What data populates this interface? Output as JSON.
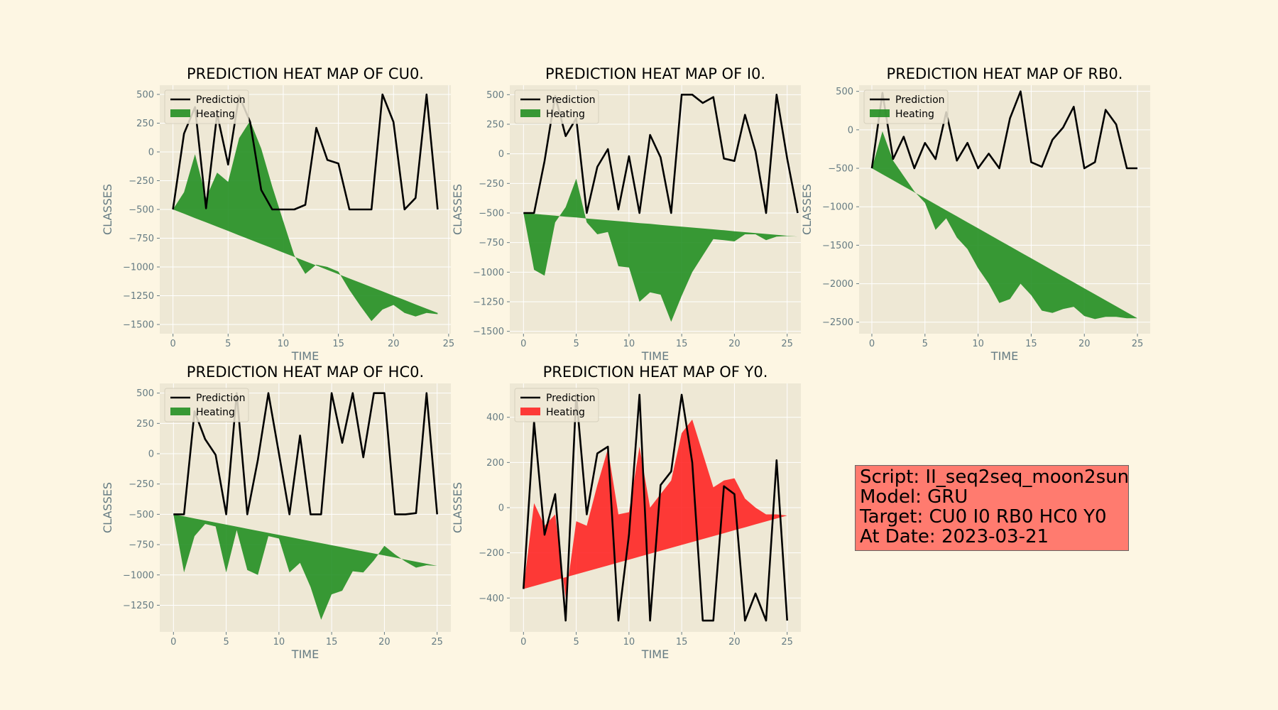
{
  "chart_data": [
    {
      "type": "line",
      "title": "PREDICTION HEAT MAP OF CU0.",
      "xlabel": "TIME",
      "ylabel": "CLASSES",
      "xlim": [
        -1.2,
        25.2
      ],
      "ylim": [
        -1580,
        580
      ],
      "xticks": [
        0,
        5,
        10,
        15,
        20,
        25
      ],
      "xtick_labels": [
        "0",
        "5",
        "10",
        "15",
        "20",
        "25"
      ],
      "yticks": [
        500,
        250,
        0,
        -250,
        -500,
        -750,
        -1000,
        -1250,
        -1500
      ],
      "ytick_labels": [
        "500",
        "250",
        "0",
        "−250",
        "−500",
        "−750",
        "−1000",
        "−1250",
        "−1500"
      ],
      "legend": [
        "Prediction",
        "Heating"
      ],
      "legend_position": "top-left",
      "grid": true,
      "fill_color": "#1e8c1e",
      "prediction": [
        -500,
        160,
        390,
        -490,
        330,
        -110,
        490,
        260,
        -330,
        -500,
        -500,
        -500,
        -460,
        210,
        -70,
        -100,
        -500,
        -500,
        -500,
        500,
        260,
        -500,
        -400,
        500,
        -500
      ],
      "heating_baseline": [
        -500,
        -537,
        -575,
        -612,
        -650,
        -687,
        -725,
        -762,
        -800,
        -837,
        -875,
        -912,
        -950,
        -987,
        -1025,
        -1062,
        -1100,
        -1137,
        -1175,
        -1212,
        -1250,
        -1287,
        -1325,
        -1362,
        -1400
      ],
      "heating_values": [
        -500,
        -350,
        -20,
        -400,
        -180,
        -260,
        120,
        270,
        30,
        -300,
        -600,
        -900,
        -1060,
        -980,
        -1000,
        -1040,
        -1200,
        -1340,
        -1470,
        -1370,
        -1330,
        -1400,
        -1430,
        -1400,
        -1410
      ]
    },
    {
      "type": "line",
      "title": "PREDICTION HEAT MAP OF I0.",
      "xlabel": "TIME",
      "ylabel": "CLASSES",
      "xlim": [
        -1.3,
        26.3
      ],
      "ylim": [
        -1520,
        580
      ],
      "xticks": [
        0,
        5,
        10,
        15,
        20,
        25
      ],
      "xtick_labels": [
        "0",
        "5",
        "10",
        "15",
        "20",
        "25"
      ],
      "yticks": [
        500,
        250,
        0,
        -250,
        -500,
        -750,
        -1000,
        -1250,
        -1500
      ],
      "ytick_labels": [
        "500",
        "250",
        "0",
        "−250",
        "−500",
        "−750",
        "−1000",
        "−1250",
        "−1500"
      ],
      "legend": [
        "Prediction",
        "Heating"
      ],
      "legend_position": "top-left",
      "grid": true,
      "fill_color": "#1e8c1e",
      "prediction": [
        -500,
        -500,
        -60,
        490,
        150,
        300,
        -500,
        -110,
        40,
        -470,
        -20,
        -500,
        160,
        -30,
        -500,
        500,
        500,
        430,
        480,
        -40,
        -60,
        330,
        20,
        -500,
        500,
        -40,
        -500
      ],
      "heating_baseline": [
        -500,
        -508,
        -515,
        -523,
        -531,
        -538,
        -546,
        -554,
        -562,
        -569,
        -577,
        -585,
        -592,
        -600,
        -608,
        -615,
        -623,
        -631,
        -638,
        -646,
        -654,
        -662,
        -669,
        -677,
        -685,
        -692,
        -700
      ],
      "heating_values": [
        -500,
        -980,
        -1030,
        -580,
        -450,
        -210,
        -580,
        -680,
        -660,
        -950,
        -960,
        -1250,
        -1170,
        -1190,
        -1420,
        -1200,
        -1000,
        -860,
        -720,
        -730,
        -740,
        -680,
        -680,
        -730,
        -700,
        -695,
        -700
      ]
    },
    {
      "type": "line",
      "title": "PREDICTION HEAT MAP OF RB0.",
      "xlabel": "TIME",
      "ylabel": "CLASSES",
      "xlim": [
        -1.2,
        26.2
      ],
      "ylim": [
        -2650,
        580
      ],
      "xticks": [
        0,
        5,
        10,
        15,
        20,
        25
      ],
      "xtick_labels": [
        "0",
        "5",
        "10",
        "15",
        "20",
        "25"
      ],
      "yticks": [
        500,
        0,
        -500,
        -1000,
        -1500,
        -2000,
        -2500
      ],
      "ytick_labels": [
        "500",
        "0",
        "−500",
        "−1000",
        "−1500",
        "−2000",
        "−2500"
      ],
      "legend": [
        "Prediction",
        "Heating"
      ],
      "legend_position": "top-left",
      "grid": true,
      "fill_color": "#1e8c1e",
      "prediction": [
        -500,
        480,
        -380,
        -90,
        -500,
        -170,
        -380,
        230,
        -400,
        -170,
        -500,
        -310,
        -500,
        150,
        500,
        -420,
        -480,
        -130,
        30,
        300,
        -500,
        -420,
        260,
        70,
        -500,
        -500
      ],
      "heating_baseline": [
        -500,
        -578,
        -656,
        -734,
        -812,
        -890,
        -968,
        -1046,
        -1124,
        -1202,
        -1280,
        -1358,
        -1436,
        -1514,
        -1592,
        -1670,
        -1748,
        -1826,
        -1904,
        -1982,
        -2060,
        -2138,
        -2216,
        -2294,
        -2372,
        -2450
      ],
      "heating_values": [
        -500,
        -20,
        -400,
        -600,
        -800,
        -950,
        -1300,
        -1150,
        -1400,
        -1550,
        -1800,
        -2000,
        -2250,
        -2200,
        -2000,
        -2150,
        -2350,
        -2380,
        -2330,
        -2300,
        -2420,
        -2460,
        -2430,
        -2430,
        -2450,
        -2450
      ]
    },
    {
      "type": "line",
      "title": "PREDICTION HEAT MAP OF HC0.",
      "xlabel": "TIME",
      "ylabel": "CLASSES",
      "xlim": [
        -1.3,
        26.3
      ],
      "ylim": [
        -1470,
        580
      ],
      "xticks": [
        0,
        5,
        10,
        15,
        20,
        25
      ],
      "xtick_labels": [
        "0",
        "5",
        "10",
        "15",
        "20",
        "25"
      ],
      "yticks": [
        500,
        250,
        0,
        -250,
        -500,
        -750,
        -1000,
        -1250
      ],
      "ytick_labels": [
        "500",
        "250",
        "0",
        "−250",
        "−500",
        "−750",
        "−1000",
        "−1250"
      ],
      "legend": [
        "Prediction",
        "Heating"
      ],
      "legend_position": "top-left",
      "grid": true,
      "fill_color": "#1e8c1e",
      "prediction": [
        -500,
        -500,
        350,
        120,
        -10,
        -500,
        500,
        -500,
        -50,
        500,
        0,
        -500,
        150,
        -500,
        -500,
        500,
        90,
        500,
        -30,
        500,
        500,
        -500,
        -500,
        -490,
        500,
        -500
      ],
      "heating_baseline": [
        -500,
        -517,
        -534,
        -551,
        -568,
        -585,
        -602,
        -619,
        -636,
        -653,
        -670,
        -687,
        -704,
        -721,
        -738,
        -755,
        -772,
        -789,
        -806,
        -823,
        -840,
        -857,
        -874,
        -891,
        -908,
        -925
      ],
      "heating_values": [
        -500,
        -980,
        -680,
        -580,
        -600,
        -980,
        -630,
        -960,
        -1000,
        -680,
        -700,
        -980,
        -900,
        -1100,
        -1370,
        -1160,
        -1130,
        -970,
        -980,
        -880,
        -760,
        -830,
        -890,
        -940,
        -920,
        -925
      ]
    },
    {
      "type": "line",
      "title": "PREDICTION HEAT MAP OF Y0.",
      "xlabel": "TIME",
      "ylabel": "CLASSES",
      "xlim": [
        -1.3,
        26.3
      ],
      "ylim": [
        -550,
        550
      ],
      "xticks": [
        0,
        5,
        10,
        15,
        20,
        25
      ],
      "xtick_labels": [
        "0",
        "5",
        "10",
        "15",
        "20",
        "25"
      ],
      "yticks": [
        400,
        200,
        0,
        -200,
        -400
      ],
      "ytick_labels": [
        "400",
        "200",
        "0",
        "−200",
        "−400"
      ],
      "legend": [
        "Prediction",
        "Heating"
      ],
      "legend_position": "top-left",
      "grid": true,
      "fill_color": "#ff2020",
      "prediction": [
        -360,
        380,
        -120,
        60,
        -500,
        500,
        -30,
        240,
        270,
        -500,
        -120,
        500,
        -500,
        100,
        160,
        500,
        200,
        -500,
        -500,
        95,
        60,
        -500,
        -380,
        -500,
        210,
        -500
      ],
      "heating_baseline": [
        -360,
        -347,
        -334,
        -321,
        -308,
        -295,
        -282,
        -269,
        -256,
        -243,
        -230,
        -217,
        -204,
        -191,
        -178,
        -165,
        -152,
        -139,
        -126,
        -113,
        -100,
        -87,
        -74,
        -61,
        -48,
        -35
      ],
      "heating_values": [
        -360,
        20,
        -80,
        -30,
        -400,
        -60,
        -80,
        100,
        260,
        -30,
        -20,
        270,
        0,
        60,
        120,
        330,
        390,
        240,
        90,
        120,
        130,
        40,
        0,
        -30,
        -30,
        -35
      ]
    }
  ],
  "info_box": {
    "line1": "Script: II_seq2seq_moon2sun",
    "line2": "Model: GRU",
    "line3": "Target: CU0 I0 RB0 HC0 Y0",
    "line4": "At Date: 2023-03-21"
  },
  "colors": {
    "figure_bg": "#fdf6e3",
    "axes_bg": "#eee8d5",
    "grid": "#ffffff",
    "prediction_line": "#000000",
    "tick_text": "#657b83",
    "info_box_bg": "#ff7b6f"
  }
}
